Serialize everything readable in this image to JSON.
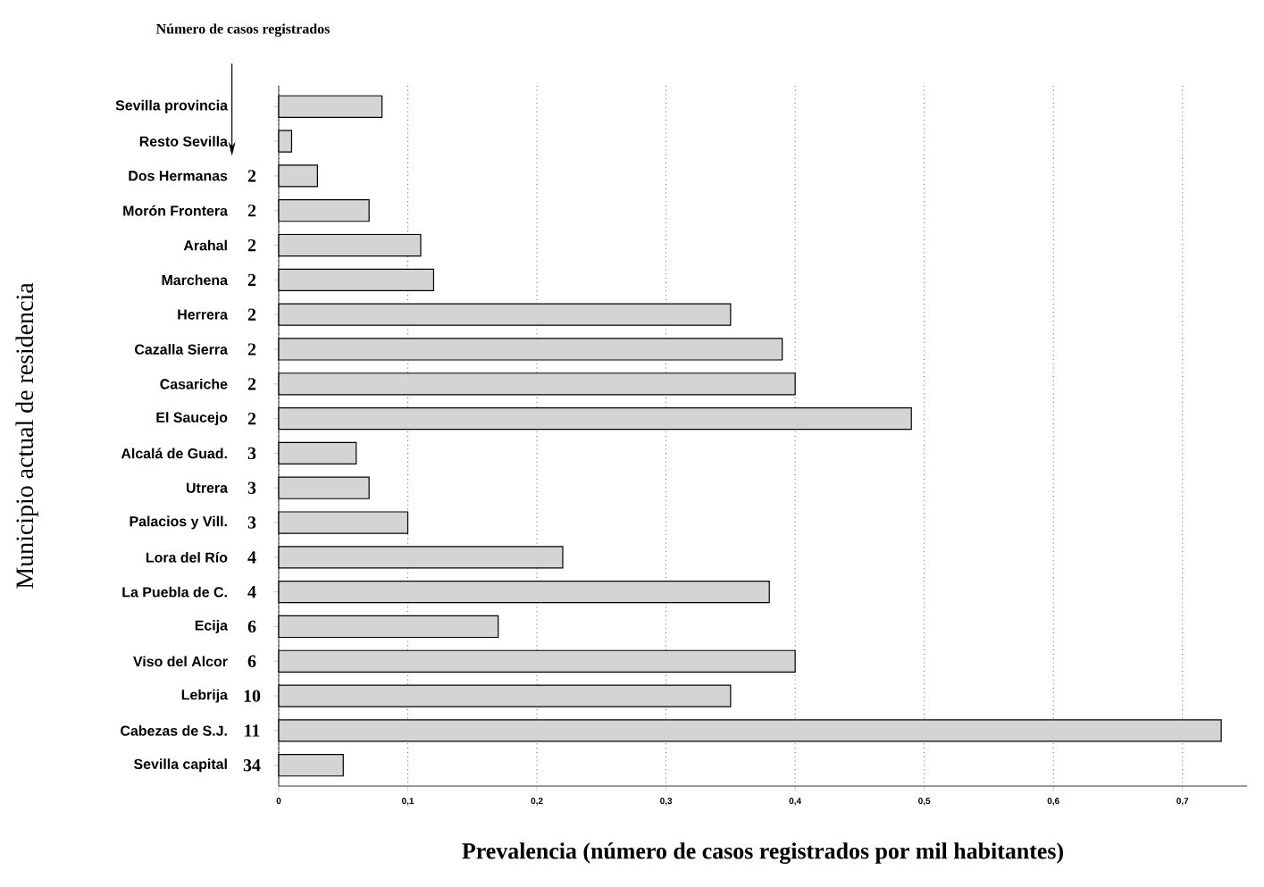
{
  "chart_data": {
    "type": "bar",
    "orientation": "horizontal",
    "xlabel": "Prevalencia (número de casos registrados por mil habitantes)",
    "ylabel": "Municipio actual de residencia",
    "categories": [
      "Sevilla provincia",
      "Resto Sevilla",
      "Dos Hermanas",
      "Morón Frontera",
      "Arahal",
      "Marchena",
      "Herrera",
      "Cazalla Sierra",
      "Casariche",
      "El Saucejo",
      "Alcalá de Guad.",
      "Utrera",
      "Palacios y Vill.",
      "Lora del Río",
      "La Puebla de C.",
      "Ecija",
      "Viso del Alcor",
      "Lebrija",
      "Cabezas de S.J.",
      "Sevilla capital"
    ],
    "values": [
      0.08,
      0.01,
      0.03,
      0.07,
      0.11,
      0.12,
      0.35,
      0.39,
      0.4,
      0.49,
      0.06,
      0.07,
      0.1,
      0.22,
      0.38,
      0.17,
      0.4,
      0.35,
      0.73,
      0.05
    ],
    "color": "#d4d4d4",
    "xlim": [
      0,
      0.75
    ],
    "xticks": [
      0,
      {
        "value": 0.1,
        "label": "0,1"
      },
      {
        "value": 0.2,
        "label": "0,2"
      },
      {
        "value": 0.3,
        "label": "0,3"
      },
      {
        "value": 0.4,
        "label": "0,4"
      },
      {
        "value": 0.5,
        "label": "0,5"
      },
      {
        "value": 0.6,
        "label": "0,6"
      },
      {
        "value": 0.7,
        "label": "0,7"
      }
    ],
    "grid": "x",
    "annotations": [
      "Número de casos registrados",
      "2",
      "2",
      "2",
      "2",
      "2",
      "2",
      "2",
      "2",
      "3",
      "3",
      "3",
      "4",
      "4",
      "6",
      "6",
      "10",
      "11",
      "34"
    ]
  }
}
